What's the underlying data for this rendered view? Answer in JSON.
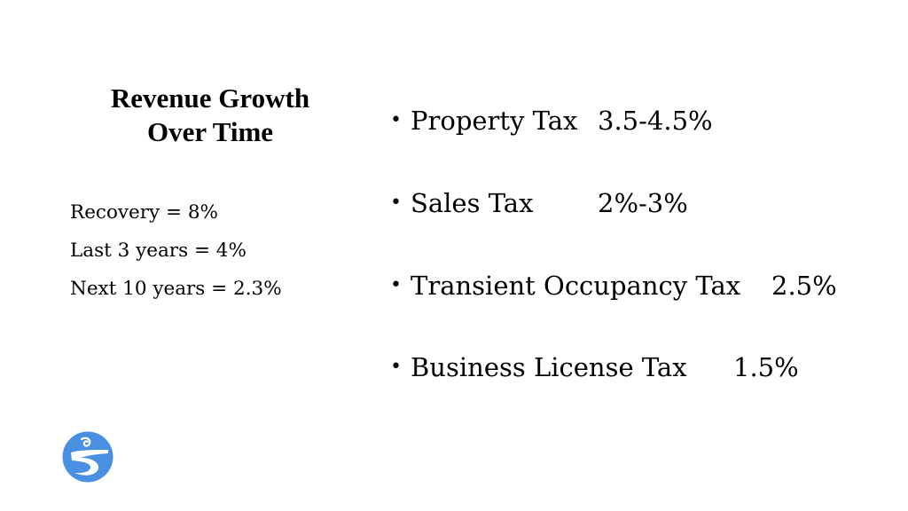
{
  "title_line1": "Revenue Growth",
  "title_line2": "Over Time",
  "growth_stats": [
    "Recovery = 8%",
    "Last 3 years = 4%",
    "Next 10 years = 2.3%"
  ],
  "bullet_symbol": "•",
  "tax_growth": [
    {
      "name": "Property Tax",
      "rate": "3.5-4.5%"
    },
    {
      "name": "Sales Tax",
      "rate": "2%-3%"
    },
    {
      "name": "Transient Occupancy Tax",
      "rate": "2.5%"
    },
    {
      "name": "Business License Tax",
      "rate": "1.5%"
    }
  ],
  "logo": {
    "icon": "city-logo-icon",
    "color": "#4a90e2"
  }
}
